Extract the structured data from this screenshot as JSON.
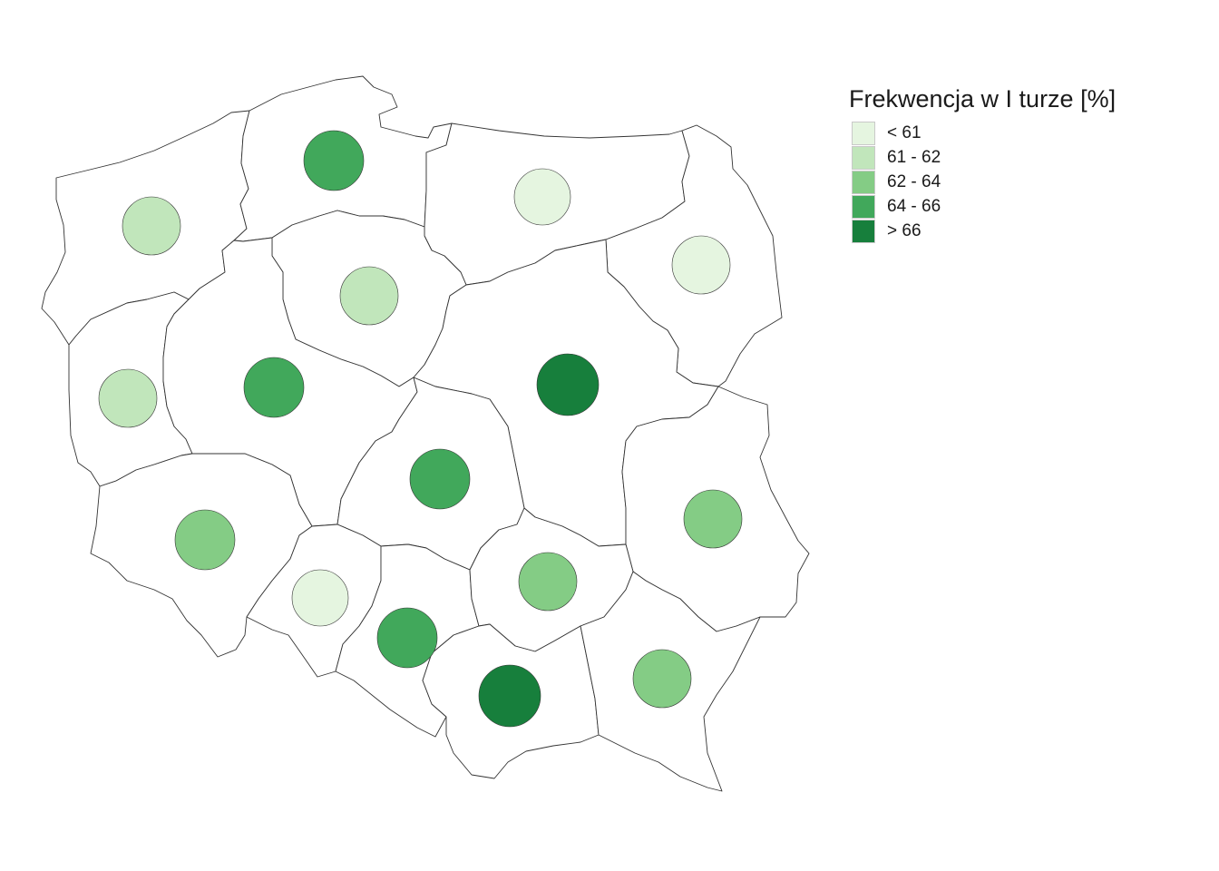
{
  "legend": {
    "title": "Frekwencja w I turze [%]",
    "classes": [
      {
        "label": "< 61",
        "color": "#e5f5e0"
      },
      {
        "label": "61 - 62",
        "color": "#c1e6bb"
      },
      {
        "label": "62 - 64",
        "color": "#84cc85"
      },
      {
        "label": "64 - 66",
        "color": "#41a85b"
      },
      {
        "label": "> 66",
        "color": "#177f3c"
      }
    ]
  },
  "regions": [
    {
      "name": "zachodniopomorskie",
      "class": 1
    },
    {
      "name": "pomorskie",
      "class": 3
    },
    {
      "name": "warmińsko-mazurskie",
      "class": 0
    },
    {
      "name": "podlaskie",
      "class": 0
    },
    {
      "name": "kujawsko-pomorskie",
      "class": 1
    },
    {
      "name": "lubuskie",
      "class": 1
    },
    {
      "name": "wielkopolskie",
      "class": 3
    },
    {
      "name": "mazowieckie",
      "class": 4
    },
    {
      "name": "łódzkie",
      "class": 3
    },
    {
      "name": "lubelskie",
      "class": 2
    },
    {
      "name": "dolnośląskie",
      "class": 2
    },
    {
      "name": "opolskie",
      "class": 0
    },
    {
      "name": "śląskie",
      "class": 3
    },
    {
      "name": "świętokrzyskie",
      "class": 2
    },
    {
      "name": "małopolskie",
      "class": 4
    },
    {
      "name": "podkarpackie",
      "class": 2
    }
  ]
}
